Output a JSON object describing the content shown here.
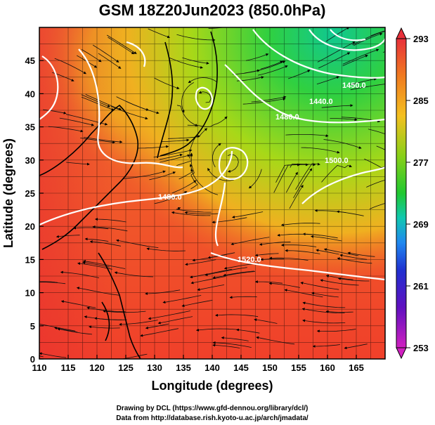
{
  "title": "GSM 18Z20Jun2023 (850.0hPa)",
  "xlabel": "Longitude (degrees)",
  "ylabel": "Latitude  (degrees)",
  "x_ticks": [
    "110",
    "115",
    "120",
    "125",
    "130",
    "135",
    "140",
    "145",
    "150",
    "155",
    "160",
    "165"
  ],
  "y_ticks": [
    "0",
    "5",
    "10",
    "15",
    "20",
    "25",
    "30",
    "35",
    "40",
    "45"
  ],
  "colorbar": {
    "ticks": [
      "293",
      "285",
      "277",
      "269",
      "261",
      "253"
    ],
    "colors": [
      "#e8303a",
      "#f07a20",
      "#f4c020",
      "#88d018",
      "#20c830",
      "#10c8b0",
      "#2088f0",
      "#2030d0",
      "#6010c0",
      "#d020c0"
    ]
  },
  "contour_labels": [
    "1480.0",
    "1500.0",
    "1520.0",
    "1480.0",
    "1440.0",
    "1450.0",
    "1500.0"
  ],
  "credits": {
    "line1": "Drawing by DCL (https://www.gfd-dennou.org/library/dcl/)",
    "line2": "Data from http://database.rish.kyoto-u.ac.jp/arch/jmadata/"
  }
}
